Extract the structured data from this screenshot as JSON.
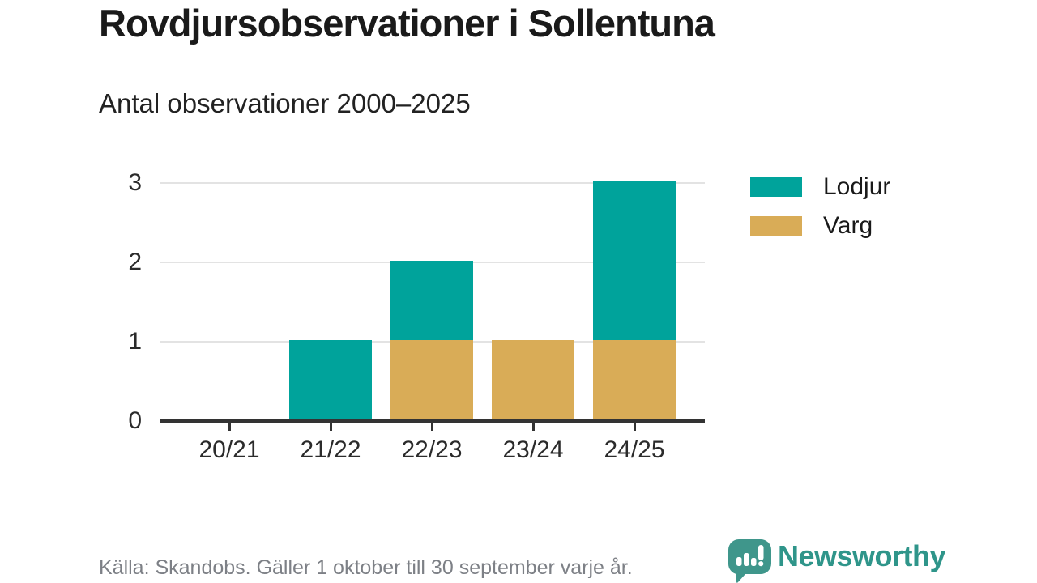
{
  "header": {
    "title": "Rovdjursobservationer i Sollentuna",
    "subtitle": "Antal observationer 2000–2025"
  },
  "chart_data": {
    "type": "bar",
    "stacked": true,
    "title": "Rovdjursobservationer i Sollentuna",
    "subtitle": "Antal observationer 2000–2025",
    "categories": [
      "20/21",
      "21/22",
      "22/23",
      "23/24",
      "24/25"
    ],
    "series": [
      {
        "name": "Lodjur",
        "color": "#00a39b",
        "values": [
          0,
          1,
          1,
          0,
          2
        ]
      },
      {
        "name": "Varg",
        "color": "#d9ac57",
        "values": [
          0,
          0,
          1,
          1,
          1
        ]
      }
    ],
    "stack_bottom_to_top": [
      "Varg",
      "Lodjur"
    ],
    "xlabel": "",
    "ylabel": "",
    "ylim": [
      0,
      3
    ],
    "yticks": [
      0,
      1,
      2,
      3
    ],
    "grid": "horizontal",
    "legend_position": "right"
  },
  "colors": {
    "lodjur": "#00a39b",
    "varg": "#d9ac57",
    "axis": "#333333",
    "gridline": "#e3e3e3",
    "brand_teal": "#2f958a"
  },
  "footer": {
    "source": "Källa: Skandobs. Gäller 1 oktober till 30 september varje år.",
    "brand": "Newsworthy"
  }
}
